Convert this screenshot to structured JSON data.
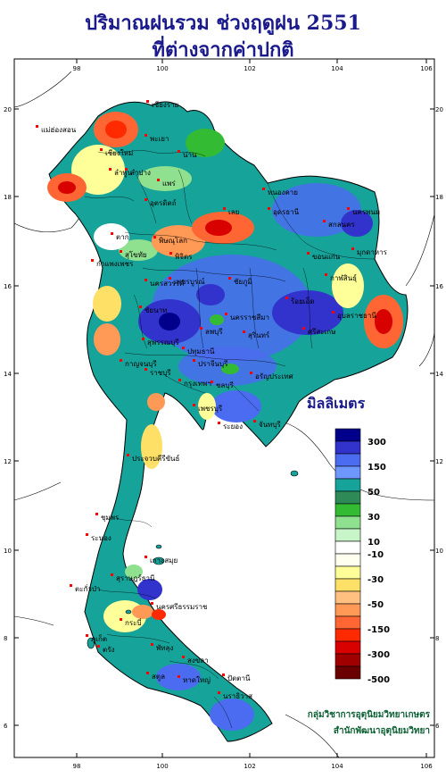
{
  "title": {
    "line1": "ปริมาณฝนรวม ช่วงฤดูฝน 2551",
    "line2": "ที่ต่างจากค่าปกติ"
  },
  "axes": {
    "x_ticks": [
      "98",
      "100",
      "102",
      "104",
      "106"
    ],
    "y_ticks": [
      "20",
      "18",
      "16",
      "14",
      "12",
      "10",
      "8",
      "6"
    ]
  },
  "legend": {
    "title": "มิลลิเมตร",
    "labels": [
      "300",
      "150",
      "50",
      "30",
      "10",
      "-10",
      "-30",
      "-50",
      "-150",
      "-300",
      "-500"
    ],
    "colors": [
      "#00008b",
      "#3232cd",
      "#4b6cf0",
      "#6e96ff",
      "#16a39a",
      "#2e8b57",
      "#33bb33",
      "#8fe08f",
      "#c8f5c8",
      "#ffffff",
      "#fffff0",
      "#ffff99",
      "#ffe066",
      "#ffc080",
      "#ff9955",
      "#ff6633",
      "#ff2a00",
      "#d90000",
      "#a00000",
      "#6a0000"
    ]
  },
  "places": [
    "เชียงราย",
    "แม่ฮ่องสอน",
    "เชียงใหม่",
    "พะเยา",
    "ลำพูน",
    "น่าน",
    "ลำปาง",
    "แพร่",
    "อุตรดิตถ์",
    "ตาก",
    "สุโขทัย",
    "พิษณุโลก",
    "เลย",
    "หนองคาย",
    "อุดรธานี",
    "นครพนม",
    "สกลนคร",
    "มุกดาหาร",
    "ขอนแก่น",
    "กาฬสินธุ์",
    "กำแพงเพชร",
    "พิจิตร",
    "เพชรบูรณ์",
    "ชัยภูมิ",
    "นครสวรรค์",
    "ร้อยเอ็ด",
    "อุบลราชธานี",
    "ชัยนาท",
    "ลพบุรี",
    "นครราชสีมา",
    "สุรินทร์",
    "ศรีสะเกษ",
    "สุพรรณบุรี",
    "กาญจนบุรี",
    "ปทุมธานี",
    "ปราจีนบุรี",
    "ราชบุรี",
    "กรุงเทพฯ",
    "ชลบุรี",
    "อรัญประเทศ",
    "เพชรบุรี",
    "ระยอง",
    "จันทบุรี",
    "ประจวบคีรีขันธ์",
    "ชุมพร",
    "ระนอง",
    "เกาะสมุย",
    "สุราษฎร์ธานี",
    "ตะกั่วป่า",
    "นครศรีธรรมราช",
    "ภูเก็ต",
    "กระบี่",
    "ตรัง",
    "พัทลุง",
    "สงขลา",
    "สตูล",
    "หาดใหญ่",
    "ปัตตานี",
    "นราธิวาส"
  ],
  "credits": {
    "line1": "กลุ่มวิชาการอุตุนิยมวิทยาเกษตร",
    "line2": "สำนักพัฒนาอุตุนิยมวิทยา"
  }
}
